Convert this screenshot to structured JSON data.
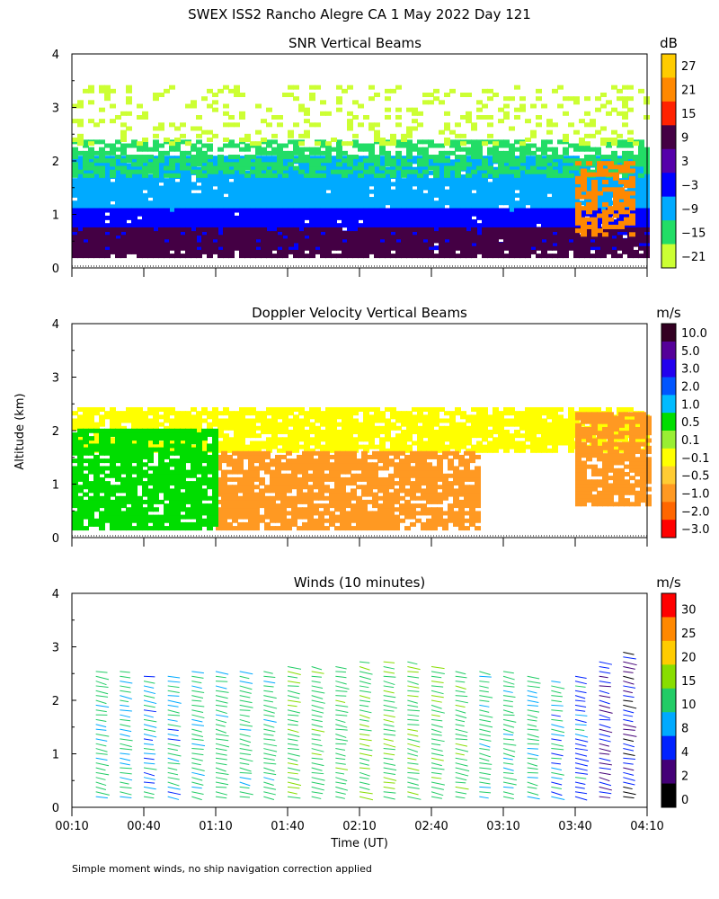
{
  "figure": {
    "title": "SWEX ISS2 Rancho Alegre CA    1 May 2022 Day 121",
    "y_axis_label": "Altitude (km)",
    "x_axis_label": "Time (UT)",
    "footnote": "Simple moment winds, no ship navigation correction applied"
  },
  "chart_data": [
    {
      "type": "heatmap",
      "title": "SNR Vertical Beams",
      "ylabel": "Altitude (km)",
      "ylim": [
        0,
        4
      ],
      "yticks": [
        "0",
        "1",
        "2",
        "3",
        "4"
      ],
      "xlim": [
        "00:10",
        "04:10"
      ],
      "colorbar": {
        "unit": "dB",
        "labels": [
          "27",
          "21",
          "15",
          "9",
          "3",
          "−3",
          "−9",
          "−15",
          "−21"
        ],
        "colors": [
          "#ffcc00",
          "#ff8800",
          "#ff2200",
          "#440044",
          "#5500aa",
          "#0000ff",
          "#00aaff",
          "#22dd66",
          "#ccff33"
        ]
      },
      "bands": [
        {
          "label": "−9",
          "y_from": 1.05,
          "y_to": 2.1
        },
        {
          "label": "−3",
          "y_from": 0.35,
          "y_to": 1.1
        },
        {
          "label": "9",
          "y_from": 0.2,
          "y_to": 0.75
        },
        {
          "label": "−15",
          "y_from": 1.7,
          "y_to": 2.35
        },
        {
          "label": "−21",
          "y_from": 2.3,
          "y_to": 3.4
        },
        {
          "label": "21",
          "y_from": 0.6,
          "y_to": 2.0
        }
      ]
    },
    {
      "type": "heatmap",
      "title": "Doppler Velocity Vertical Beams",
      "ylabel": "Altitude (km)",
      "ylim": [
        0,
        4
      ],
      "yticks": [
        "0",
        "1",
        "2",
        "3",
        "4"
      ],
      "xlim": [
        "00:10",
        "04:10"
      ],
      "colorbar": {
        "unit": "m/s",
        "labels": [
          "10.0",
          "5.0",
          "3.0",
          "2.0",
          "1.0",
          "0.5",
          "0.1",
          "−0.1",
          "−0.5",
          "−1.0",
          "−2.0",
          "−3.0"
        ],
        "colors": [
          "#330022",
          "#550099",
          "#2200ee",
          "#0055ff",
          "#00bbff",
          "#00dd00",
          "#99ee33",
          "#ffff00",
          "#ffcc33",
          "#ff9922",
          "#ff6600",
          "#ff0000"
        ]
      },
      "regions": [
        {
          "label": "0.5",
          "time_from": "00:10",
          "time_to": "01:10",
          "y_from": 0.15,
          "y_to": 2.0
        },
        {
          "label": "−1.0",
          "time_from": "01:10",
          "time_to": "03:00",
          "y_from": 0.15,
          "y_to": 1.6
        },
        {
          "label": "−1.0",
          "time_from": "03:40",
          "time_to": "04:10",
          "y_from": 0.6,
          "y_to": 2.3
        },
        {
          "label": "−0.1",
          "time_from": "00:10",
          "time_to": "04:10",
          "y_from": 1.6,
          "y_to": 2.4
        }
      ]
    },
    {
      "type": "barbs",
      "title": "Winds (10 minutes)",
      "ylabel": "Altitude (km)",
      "ylim": [
        0,
        4
      ],
      "yticks": [
        "0",
        "1",
        "2",
        "3",
        "4"
      ],
      "xlabel": "Time (UT)",
      "xticks": [
        "00:10",
        "00:40",
        "01:10",
        "01:40",
        "02:10",
        "02:40",
        "03:10",
        "03:40",
        "04:10"
      ],
      "xlim": [
        "00:10",
        "04:10"
      ],
      "interval_minutes": 10,
      "colorbar": {
        "unit": "m/s",
        "labels": [
          "30",
          "25",
          "20",
          "15",
          "10",
          "8",
          "4",
          "2",
          "0"
        ],
        "colors": [
          "#ff0000",
          "#ff8800",
          "#ffcc00",
          "#88dd00",
          "#22cc66",
          "#00aaff",
          "#0022ff",
          "#440077",
          "#000000"
        ]
      },
      "profiles": [
        {
          "time": "00:20",
          "speed_ms": 12,
          "top_km": 2.6
        },
        {
          "time": "00:30",
          "speed_ms": 11,
          "top_km": 2.6
        },
        {
          "time": "00:40",
          "speed_ms": 10,
          "top_km": 2.5
        },
        {
          "time": "00:50",
          "speed_ms": 10,
          "top_km": 2.5
        },
        {
          "time": "01:00",
          "speed_ms": 11,
          "top_km": 2.6
        },
        {
          "time": "01:10",
          "speed_ms": 12,
          "top_km": 2.6
        },
        {
          "time": "01:20",
          "speed_ms": 12,
          "top_km": 2.6
        },
        {
          "time": "01:30",
          "speed_ms": 12,
          "top_km": 2.6
        },
        {
          "time": "01:40",
          "speed_ms": 13,
          "top_km": 2.7
        },
        {
          "time": "01:50",
          "speed_ms": 13,
          "top_km": 2.7
        },
        {
          "time": "02:00",
          "speed_ms": 13,
          "top_km": 2.7
        },
        {
          "time": "02:10",
          "speed_ms": 14,
          "top_km": 2.8
        },
        {
          "time": "02:20",
          "speed_ms": 14,
          "top_km": 2.8
        },
        {
          "time": "02:30",
          "speed_ms": 14,
          "top_km": 2.8
        },
        {
          "time": "02:40",
          "speed_ms": 13,
          "top_km": 2.7
        },
        {
          "time": "02:50",
          "speed_ms": 13,
          "top_km": 2.6
        },
        {
          "time": "03:00",
          "speed_ms": 12,
          "top_km": 2.6
        },
        {
          "time": "03:10",
          "speed_ms": 12,
          "top_km": 2.6
        },
        {
          "time": "03:20",
          "speed_ms": 11,
          "top_km": 2.5
        },
        {
          "time": "03:30",
          "speed_ms": 10,
          "top_km": 2.4
        },
        {
          "time": "03:40",
          "speed_ms": 8,
          "top_km": 2.5
        },
        {
          "time": "03:50",
          "speed_ms": 5,
          "top_km": 2.8
        },
        {
          "time": "04:00",
          "speed_ms": 4,
          "top_km": 2.9
        }
      ]
    }
  ]
}
